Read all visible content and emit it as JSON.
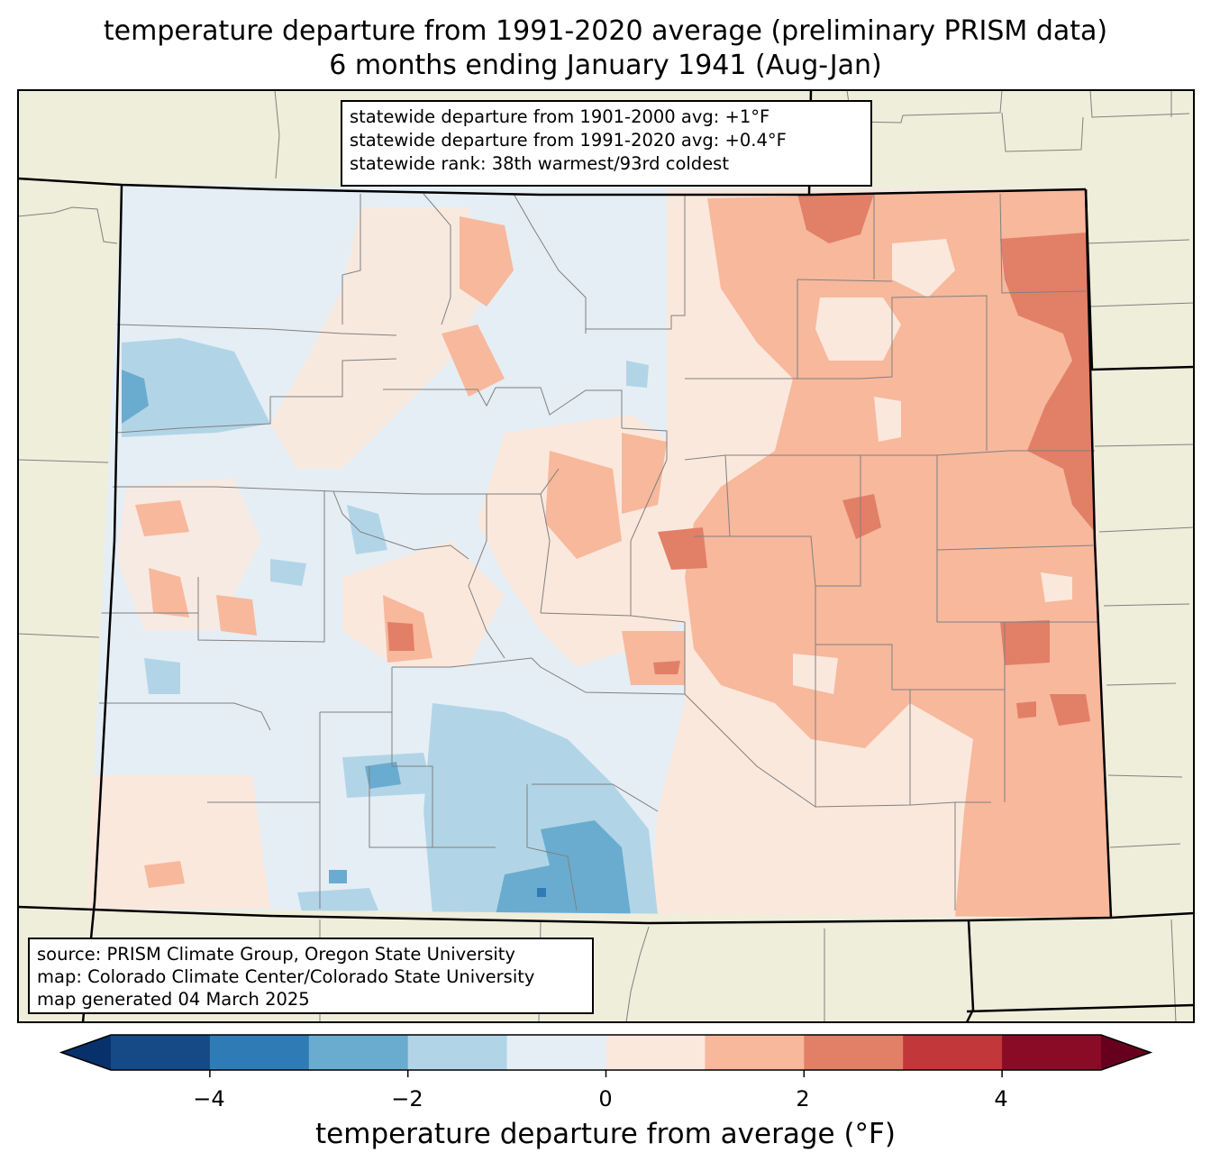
{
  "title": {
    "line1": "temperature departure from 1991-2020 average (preliminary PRISM data)",
    "line2": "6 months ending January 1941 (Aug-Jan)"
  },
  "stats": {
    "line1": "statewide departure from 1901-2000 avg: +1°F",
    "line2": "statewide departure from 1991-2020 avg: +0.4°F",
    "line3": "statewide rank: 38th warmest/93rd coldest"
  },
  "source": {
    "line1": "source: PRISM Climate Group, Oregon State University",
    "line2": "map: Colorado Climate Center/Colorado State University",
    "line3": "map generated 04 March 2025"
  },
  "colorbar": {
    "label": "temperature departure from average (°F)",
    "ticks": [
      "−4",
      "−2",
      "0",
      "2",
      "4"
    ],
    "bins": [
      {
        "from": -5,
        "to": -4,
        "color": "#154a87"
      },
      {
        "from": -4,
        "to": -3,
        "color": "#2f7bb6"
      },
      {
        "from": -3,
        "to": -2,
        "color": "#6aacd0"
      },
      {
        "from": -2,
        "to": -1,
        "color": "#b1d5e7"
      },
      {
        "from": -1,
        "to": 0,
        "color": "#e5eef5"
      },
      {
        "from": 0,
        "to": 1,
        "color": "#fae8dd"
      },
      {
        "from": 1,
        "to": 2,
        "color": "#f7b89c"
      },
      {
        "from": 2,
        "to": 3,
        "color": "#e27f67"
      },
      {
        "from": 3,
        "to": 4,
        "color": "#c1373a"
      },
      {
        "from": 4,
        "to": 5,
        "color": "#8a0b25"
      }
    ],
    "under_color": "#08306b",
    "over_color": "#67001f"
  },
  "colors": {
    "land": "#efeedb",
    "state_border": "#000000",
    "county_border": "#808080"
  }
}
